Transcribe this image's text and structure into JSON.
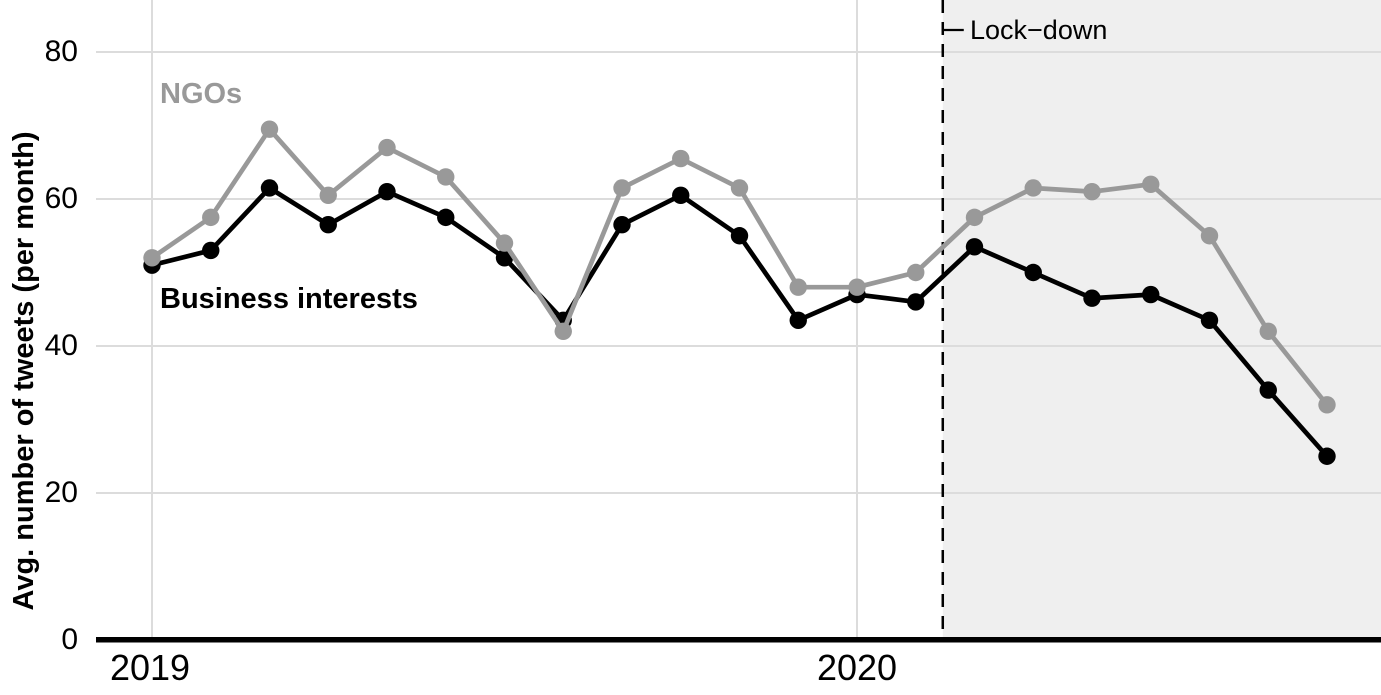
{
  "chart_data": {
    "type": "line",
    "title": "",
    "xlabel": "",
    "ylabel": "Avg. number of tweets (per month)",
    "y_tick_labels": [
      "0",
      "20",
      "40",
      "60",
      "80"
    ],
    "x_tick_labels": [
      "2019",
      "2020"
    ],
    "ylim": [
      0,
      87
    ],
    "grid": {
      "on": true,
      "color": "#dcdcdc",
      "y_values": [
        20,
        40,
        60,
        80
      ],
      "x_indices": [
        0,
        12
      ]
    },
    "categories": [
      "2019-01",
      "2019-02",
      "2019-03",
      "2019-04",
      "2019-05",
      "2019-06",
      "2019-07",
      "2019-08",
      "2019-09",
      "2019-10",
      "2019-11",
      "2019-12",
      "2020-01",
      "2020-02",
      "2020-03",
      "2020-04",
      "2020-05",
      "2020-06",
      "2020-07",
      "2020-08",
      "2020-09"
    ],
    "series": [
      {
        "name": "Business interests",
        "color": "#000000",
        "values": [
          51,
          53,
          61.5,
          56.5,
          61,
          57.5,
          52,
          43.5,
          56.5,
          60.5,
          55,
          43.5,
          47,
          46,
          53.5,
          50,
          46.5,
          47,
          43.5,
          34,
          25
        ]
      },
      {
        "name": "NGOs",
        "color": "#999999",
        "values": [
          52,
          57.5,
          69.5,
          60.5,
          67,
          63,
          54,
          42,
          61.5,
          65.5,
          61.5,
          48,
          48,
          50,
          57.5,
          61.5,
          61,
          62,
          55,
          42,
          32
        ]
      }
    ],
    "annotations": {
      "lockdown": {
        "label": "Lock−down",
        "x_index": 13.46,
        "line_style": "dashed",
        "line_color": "#000000",
        "region_color": "#efefef"
      }
    },
    "legend_position": "inline-labels"
  }
}
